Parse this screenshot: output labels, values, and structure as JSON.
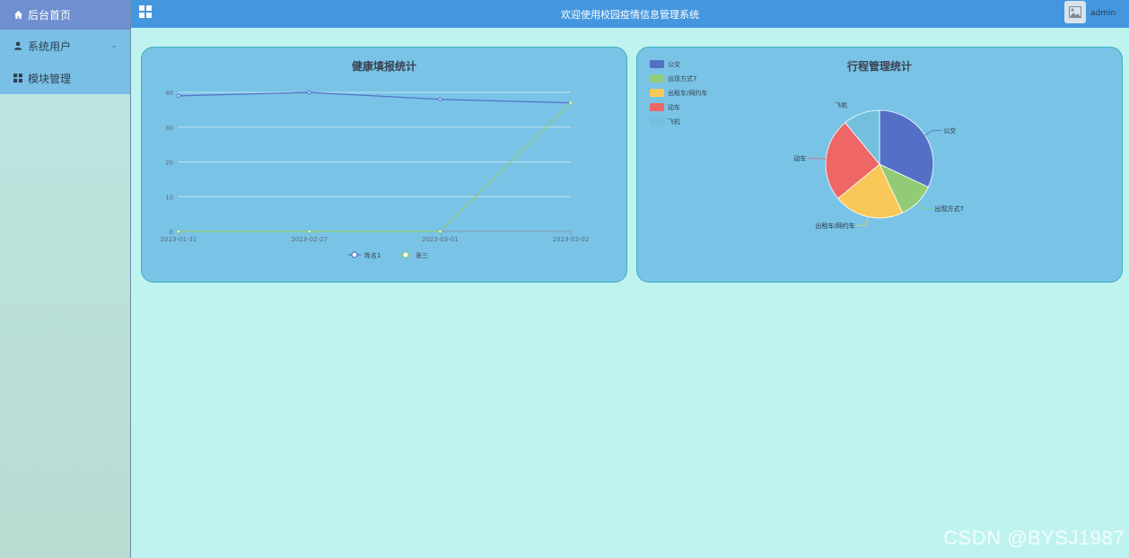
{
  "header": {
    "title": "欢迎使用校园疫情信息管理系统",
    "user": "admin"
  },
  "sidebar": {
    "items": [
      {
        "label": "后台首页",
        "icon": "home-icon"
      },
      {
        "label": "系统用户",
        "icon": "user-icon"
      },
      {
        "label": "模块管理",
        "icon": "grid-icon"
      }
    ]
  },
  "watermark": "CSDN @BYSJ1987",
  "chart_data": [
    {
      "type": "line",
      "title": "健康填报统计",
      "x": [
        "2023-01-31",
        "2023-02-27",
        "2023-03-01",
        "2023-03-02"
      ],
      "ylim": [
        0,
        40
      ],
      "yticks": [
        0,
        10,
        20,
        30,
        40
      ],
      "series": [
        {
          "name": "姓名1",
          "values": [
            39,
            40,
            38,
            37
          ],
          "color": "#5470c6"
        },
        {
          "name": "张三",
          "values": [
            0,
            0,
            0,
            37
          ],
          "color": "#91cc75"
        }
      ],
      "grid": true,
      "legend": "bottom"
    },
    {
      "type": "pie",
      "title": "行程管理统计",
      "slices": [
        {
          "name": "公交",
          "value": 32,
          "color": "#5470c6"
        },
        {
          "name": "出现方式7",
          "value": 11,
          "color": "#91cc75"
        },
        {
          "name": "出租车/网约车",
          "value": 21,
          "color": "#fac858"
        },
        {
          "name": "动车",
          "value": 25,
          "color": "#ee6666"
        },
        {
          "name": "飞机",
          "value": 11,
          "color": "#73c0de"
        }
      ],
      "legend": "top-left"
    }
  ]
}
